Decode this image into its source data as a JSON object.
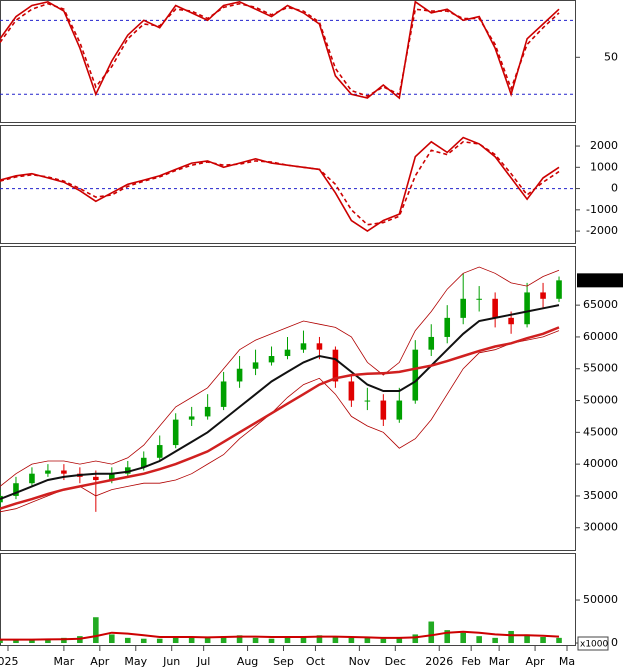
{
  "chart_data": [
    {
      "type": "line",
      "ylim": [
        15,
        81
      ],
      "yticks": [
        50
      ],
      "ref_lines": [
        30,
        70
      ],
      "x": [
        0,
        2,
        4,
        6,
        8,
        10,
        12,
        14,
        16,
        18,
        20,
        22,
        24,
        26,
        28,
        30,
        32,
        34,
        36,
        38,
        40,
        42,
        44,
        46,
        48,
        50,
        52,
        54,
        56,
        58,
        60,
        62,
        64,
        66,
        68,
        70
      ],
      "xlim": [
        0,
        72
      ],
      "series": [
        {
          "color": "#cc0000",
          "dashed": false,
          "values": [
            60,
            72,
            78,
            80,
            75,
            55,
            30,
            48,
            62,
            70,
            66,
            78,
            74,
            70,
            78,
            80,
            76,
            72,
            78,
            74,
            68,
            40,
            30,
            28,
            35,
            28,
            80,
            74,
            76,
            70,
            72,
            55,
            30,
            60,
            68,
            76
          ]
        },
        {
          "color": "#cc0000",
          "dashed": true,
          "values": [
            58,
            70,
            76,
            79,
            76,
            58,
            34,
            45,
            60,
            68,
            67,
            76,
            75,
            71,
            77,
            79,
            77,
            73,
            77,
            75,
            69,
            44,
            32,
            29,
            34,
            30,
            76,
            75,
            75,
            71,
            71,
            57,
            33,
            57,
            66,
            74
          ]
        }
      ]
    },
    {
      "type": "line",
      "ylim": [
        -2560,
        2990
      ],
      "yticks": [
        2000,
        1000,
        0,
        -1000,
        -2000
      ],
      "ref_lines": [
        0
      ],
      "x": [
        0,
        2,
        4,
        6,
        8,
        10,
        12,
        14,
        16,
        18,
        20,
        22,
        24,
        26,
        28,
        30,
        32,
        34,
        36,
        38,
        40,
        42,
        44,
        46,
        48,
        50,
        52,
        54,
        56,
        58,
        60,
        62,
        64,
        66,
        68,
        70
      ],
      "xlim": [
        0,
        72
      ],
      "series": [
        {
          "color": "#cc0000",
          "dashed": false,
          "values": [
            400,
            600,
            700,
            500,
            300,
            -100,
            -600,
            -200,
            200,
            400,
            600,
            900,
            1200,
            1300,
            1000,
            1200,
            1400,
            1200,
            1100,
            1000,
            900,
            -200,
            -1500,
            -2000,
            -1500,
            -1200,
            1500,
            2200,
            1700,
            2400,
            2100,
            1500,
            500,
            -500,
            500,
            1000
          ]
        },
        {
          "color": "#cc0000",
          "dashed": true,
          "values": [
            350,
            550,
            650,
            550,
            350,
            0,
            -400,
            -300,
            100,
            350,
            550,
            850,
            1100,
            1250,
            1100,
            1150,
            1300,
            1250,
            1100,
            1000,
            900,
            200,
            -1000,
            -1700,
            -1600,
            -1300,
            600,
            1800,
            1600,
            2200,
            2100,
            1600,
            700,
            -300,
            300,
            800
          ]
        }
      ]
    },
    {
      "type": "candlestick",
      "ylim": [
        26500,
        74300
      ],
      "yticks": [
        30000,
        35000,
        40000,
        45000,
        50000,
        55000,
        60000,
        65000
      ],
      "x": [
        0,
        2,
        4,
        6,
        8,
        10,
        12,
        14,
        16,
        18,
        20,
        22,
        24,
        26,
        28,
        30,
        32,
        34,
        36,
        38,
        40,
        42,
        44,
        46,
        48,
        50,
        52,
        54,
        56,
        58,
        60,
        62,
        64,
        66,
        68,
        70
      ],
      "xlim": [
        0,
        72
      ],
      "up_color": "#00a000",
      "down_color": "#e00000",
      "open": [
        34000,
        35000,
        37000,
        38500,
        39000,
        38500,
        38000,
        37500,
        38500,
        39500,
        41000,
        43000,
        47000,
        47500,
        49000,
        53000,
        55000,
        56000,
        57000,
        58000,
        59000,
        58000,
        53000,
        50000,
        50000,
        47000,
        50000,
        58000,
        60000,
        63000,
        66000,
        66000,
        63000,
        62000,
        67000,
        66000
      ],
      "high": [
        36000,
        38000,
        39500,
        40000,
        40000,
        39500,
        39000,
        39500,
        40500,
        42000,
        44500,
        48000,
        49000,
        51000,
        54500,
        57000,
        58000,
        58500,
        60000,
        61000,
        60000,
        58500,
        54000,
        52000,
        51000,
        52000,
        59500,
        62000,
        65000,
        70000,
        68000,
        67000,
        64000,
        68500,
        68500,
        69500
      ],
      "low": [
        33000,
        34500,
        36500,
        38000,
        37500,
        37000,
        32500,
        37000,
        38000,
        39000,
        40500,
        42500,
        46000,
        47000,
        48500,
        52000,
        54000,
        55500,
        56500,
        57500,
        56500,
        52000,
        49000,
        48500,
        46000,
        46500,
        49500,
        57000,
        59000,
        62000,
        64000,
        61500,
        60500,
        61500,
        64500,
        65500
      ],
      "close": [
        35000,
        37000,
        38500,
        39000,
        38500,
        38000,
        37500,
        38500,
        39500,
        41000,
        43000,
        47000,
        47500,
        49000,
        53000,
        55000,
        56000,
        57000,
        58000,
        59000,
        58000,
        53000,
        50000,
        50000,
        47000,
        50000,
        58000,
        60000,
        63000,
        66000,
        66000,
        63000,
        62000,
        67000,
        66000,
        68900
      ],
      "series": [
        {
          "color": "#b00000",
          "width": 0.8,
          "values": [
            36500,
            38500,
            40000,
            40500,
            40500,
            40000,
            40500,
            40000,
            41000,
            43000,
            46000,
            49000,
            50500,
            52000,
            55000,
            58000,
            59500,
            60500,
            61500,
            62500,
            62000,
            61500,
            60000,
            56000,
            54000,
            56000,
            61000,
            64000,
            67500,
            70000,
            71000,
            70000,
            68500,
            68000,
            69500,
            70500
          ]
        },
        {
          "color": "#b00000",
          "width": 0.8,
          "values": [
            32500,
            33000,
            34000,
            35000,
            36000,
            36500,
            35000,
            36000,
            36500,
            37000,
            37000,
            37500,
            38500,
            40000,
            41500,
            44000,
            46000,
            48000,
            50500,
            52500,
            53500,
            51000,
            47500,
            46000,
            45000,
            42500,
            44000,
            47000,
            51000,
            55000,
            57500,
            58000,
            59000,
            59500,
            60000,
            61000
          ]
        },
        {
          "color": "#111111",
          "width": 2,
          "values": [
            34500,
            35500,
            36500,
            37500,
            38000,
            38300,
            38500,
            38500,
            38800,
            39500,
            40500,
            42000,
            43500,
            45000,
            47000,
            49000,
            51000,
            53000,
            54500,
            56000,
            57000,
            56500,
            54500,
            52500,
            51500,
            51500,
            53000,
            55500,
            58000,
            60500,
            62500,
            63000,
            63500,
            64000,
            64500,
            65000
          ]
        },
        {
          "color": "#d02020",
          "width": 2.5,
          "values": [
            33000,
            33800,
            34500,
            35300,
            36000,
            36500,
            37000,
            37500,
            38000,
            38500,
            39200,
            40000,
            41000,
            42000,
            43500,
            45000,
            46500,
            48000,
            49500,
            51000,
            52500,
            53500,
            54000,
            54200,
            54300,
            54500,
            55000,
            55500,
            56200,
            57000,
            57800,
            58500,
            59000,
            59800,
            60500,
            61500
          ]
        }
      ],
      "last_price": 68900,
      "last_price_label": "68900.00"
    },
    {
      "type": "bar",
      "ylim": [
        -2300,
        104700
      ],
      "yticks": [
        0,
        50000
      ],
      "y_unit_label": "x1000",
      "color": "#22aa22",
      "x": [
        0,
        2,
        4,
        6,
        8,
        10,
        12,
        14,
        16,
        18,
        20,
        22,
        24,
        26,
        28,
        30,
        32,
        34,
        36,
        38,
        40,
        42,
        44,
        46,
        48,
        50,
        52,
        54,
        56,
        58,
        60,
        62,
        64,
        66,
        68,
        70
      ],
      "xlim": [
        0,
        72
      ],
      "values": [
        3000,
        4000,
        3000,
        5000,
        6000,
        8000,
        30000,
        10000,
        6000,
        5000,
        5000,
        8000,
        7000,
        6000,
        8000,
        9000,
        6000,
        5000,
        8000,
        7000,
        9000,
        8000,
        6000,
        7000,
        5000,
        6000,
        10000,
        25000,
        15000,
        12000,
        8000,
        6000,
        14000,
        10000,
        7000,
        6000
      ],
      "series": [
        {
          "color": "#cc0000",
          "width": 2,
          "values": [
            4000,
            4000,
            4000,
            4200,
            4500,
            5000,
            8000,
            12000,
            11000,
            9000,
            7000,
            7000,
            7000,
            6500,
            7000,
            7500,
            7500,
            7000,
            7000,
            7000,
            7500,
            7500,
            7000,
            6500,
            6000,
            6000,
            6500,
            9000,
            12000,
            13000,
            12000,
            10000,
            9000,
            9000,
            8500,
            7500
          ]
        }
      ],
      "xticks": [
        {
          "value": 1,
          "label": "025"
        },
        {
          "value": 8,
          "label": "Mar"
        },
        {
          "value": 12.5,
          "label": "Apr"
        },
        {
          "value": 17,
          "label": "May"
        },
        {
          "value": 21.5,
          "label": "Jun"
        },
        {
          "value": 25.5,
          "label": "Jul"
        },
        {
          "value": 31,
          "label": "Aug"
        },
        {
          "value": 35.5,
          "label": "Sep"
        },
        {
          "value": 39.5,
          "label": "Oct"
        },
        {
          "value": 45,
          "label": "Nov"
        },
        {
          "value": 49.5,
          "label": "Dec"
        },
        {
          "value": 55,
          "label": "2026"
        },
        {
          "value": 59,
          "label": "Feb"
        },
        {
          "value": 62.5,
          "label": "Mar"
        },
        {
          "value": 67,
          "label": "Apr"
        },
        {
          "value": 71,
          "label": "Ma"
        }
      ]
    }
  ]
}
